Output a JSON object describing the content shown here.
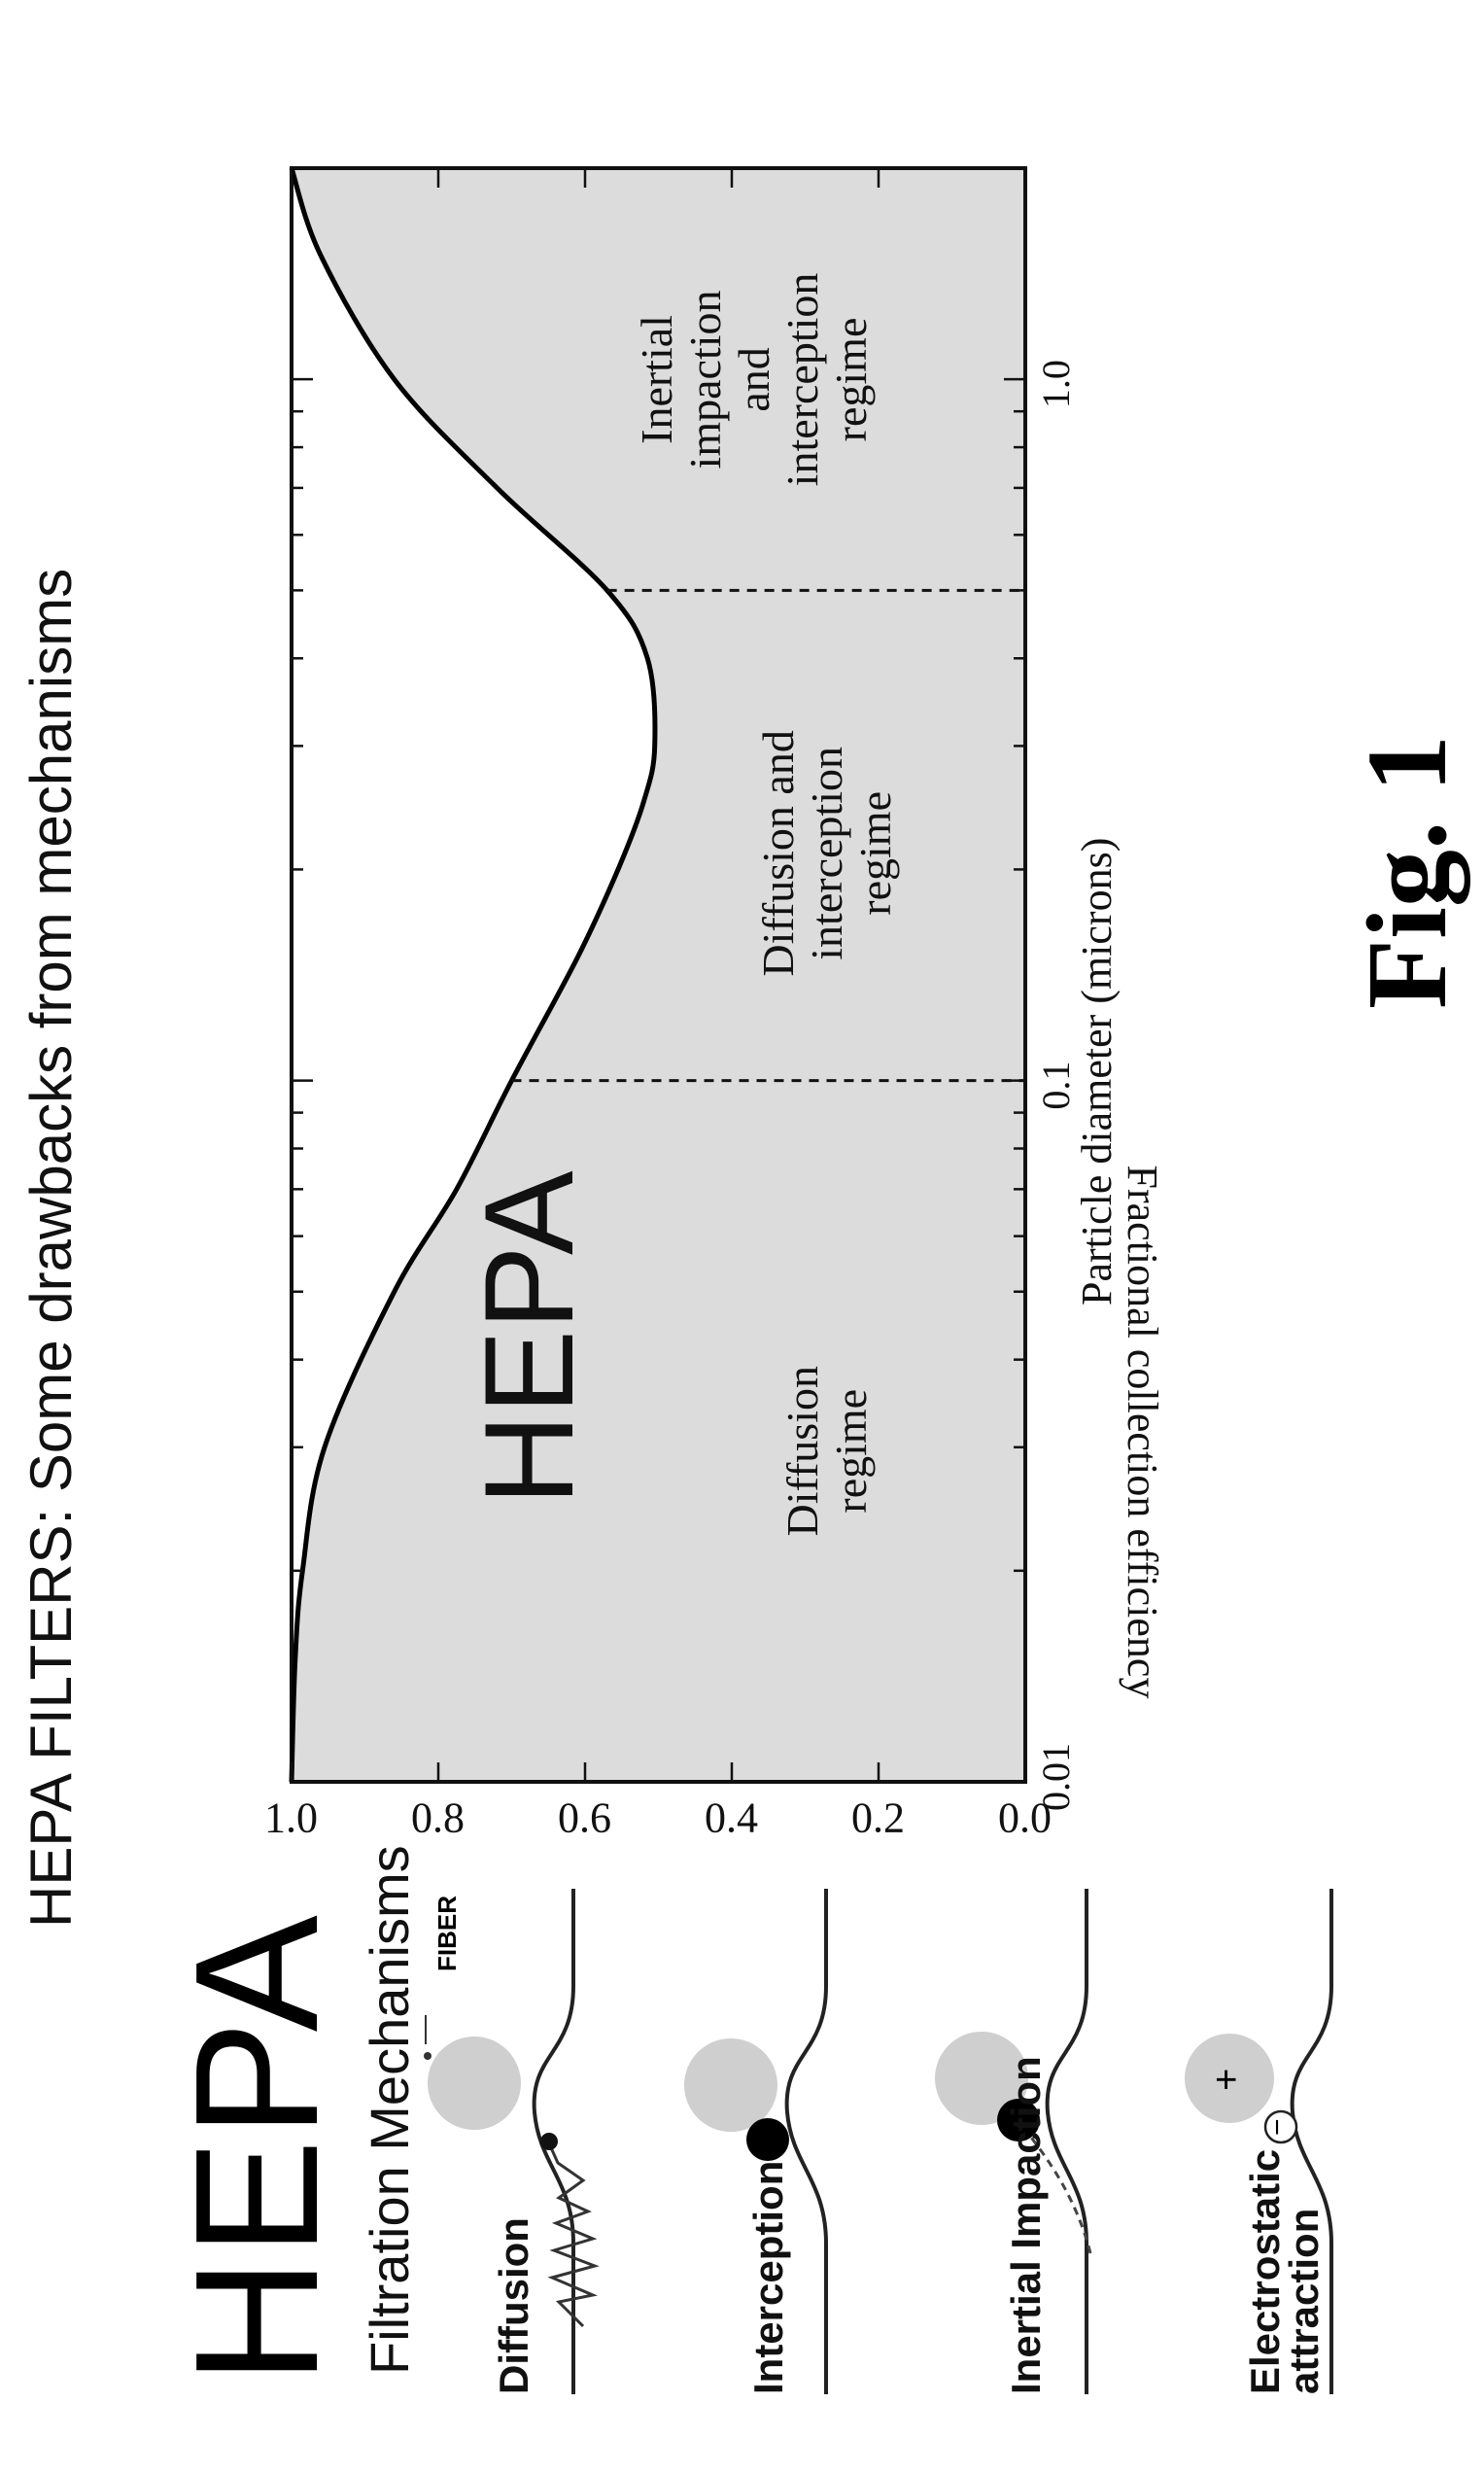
{
  "header": {
    "title": "HEPA FILTERS: Some drawbacks from mechanisms"
  },
  "mechanisms_panel": {
    "brand": "HEPA",
    "subtitle": "Filtration Mechanisms",
    "fiber_label": "FIBER",
    "items": [
      {
        "label": "Diffusion"
      },
      {
        "label": "Interception"
      },
      {
        "label": "Inertial Impaction"
      },
      {
        "label_lines": [
          "Electrostatic",
          "attraction"
        ],
        "charge_particle": "+",
        "charge_fiber": "−"
      }
    ]
  },
  "chart_data": {
    "type": "area",
    "ylabel": "Fractional collection efficiency",
    "xlabel": "Particle diameter (microns)",
    "xscale": "log",
    "xlim": [
      0.01,
      2.0
    ],
    "ylim": [
      0.0,
      1.0
    ],
    "xticks": [
      {
        "value": 0.01,
        "label": "0.01"
      },
      {
        "value": 0.1,
        "label": "0.1"
      },
      {
        "value": 1.0,
        "label": "1.0"
      }
    ],
    "yticks": [
      {
        "value": 0.0,
        "label": "0.0"
      },
      {
        "value": 0.2,
        "label": "0.2"
      },
      {
        "value": 0.4,
        "label": "0.4"
      },
      {
        "value": 0.6,
        "label": "0.6"
      },
      {
        "value": 0.8,
        "label": "0.8"
      },
      {
        "value": 1.0,
        "label": "1.0"
      }
    ],
    "series": [
      {
        "x": [
          0.01,
          0.015,
          0.02,
          0.03,
          0.05,
          0.07,
          0.1,
          0.15,
          0.2,
          0.25,
          0.3,
          0.4,
          0.5,
          0.7,
          1.0,
          1.5,
          2.0
        ],
        "y": [
          1.0,
          0.995,
          0.985,
          0.955,
          0.86,
          0.775,
          0.7,
          0.61,
          0.555,
          0.52,
          0.505,
          0.515,
          0.57,
          0.72,
          0.86,
          0.96,
          1.0
        ]
      }
    ],
    "dividers": [
      0.1,
      0.5
    ],
    "annotations": [
      {
        "text": "HEPA",
        "x": 0.04,
        "y": 0.67
      },
      {
        "text_lines": [
          "Diffusion",
          "regime"
        ],
        "x": 0.035,
        "y": 0.27
      },
      {
        "text_lines": [
          "Diffusion and",
          "interception",
          "regime"
        ],
        "x": 0.22,
        "y": 0.27
      },
      {
        "text_lines": [
          "Inertial",
          "impaction",
          "and",
          "interception",
          "regime"
        ],
        "x": 1.1,
        "y": 0.37
      }
    ],
    "fill_color": "#dcdcdc",
    "grid": false
  },
  "figure_label": "Fig. 1"
}
